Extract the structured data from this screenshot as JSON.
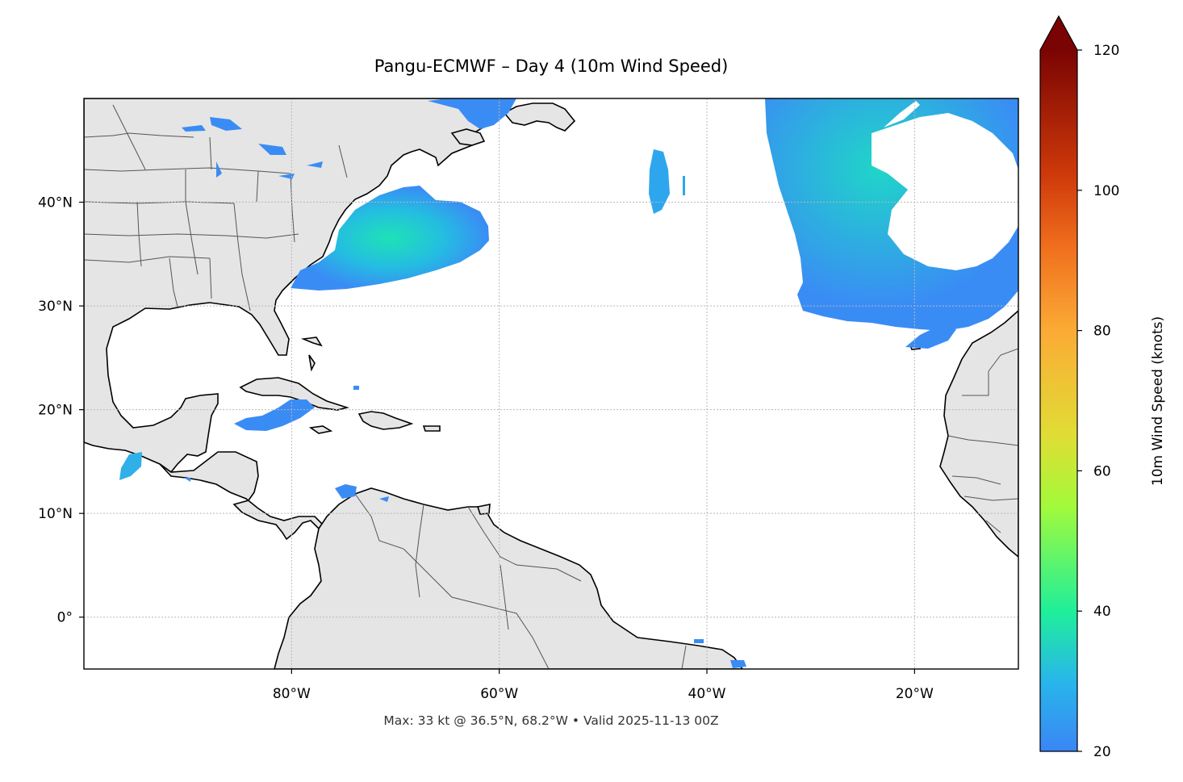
{
  "map": {
    "title": "Pangu-ECMWF – Day 4 (10m Wind Speed)",
    "subtitle": "Max: 33 kt @ 36.5°N, 68.2°W • Valid 2025-11-13 00Z",
    "extent": {
      "lon": [
        -100,
        -10
      ],
      "lat": [
        -5,
        50
      ]
    },
    "lon_ticks": [
      {
        "value": -80,
        "label": "80°W"
      },
      {
        "value": -60,
        "label": "60°W"
      },
      {
        "value": -40,
        "label": "40°W"
      },
      {
        "value": -20,
        "label": "20°W"
      }
    ],
    "lat_ticks": [
      {
        "value": 40,
        "label": "40°N"
      },
      {
        "value": 30,
        "label": "30°N"
      },
      {
        "value": 20,
        "label": "20°N"
      },
      {
        "value": 10,
        "label": "10°N"
      },
      {
        "value": 0,
        "label": "0°"
      }
    ],
    "land_color": "#e5e5e5",
    "ocean_color": "#ffffff",
    "coast_color": "#000000",
    "border_color": "#555555"
  },
  "colorbar": {
    "label": "10m Wind Speed (knots)",
    "min": 20,
    "max": 120,
    "extend": "max",
    "ticks": [
      {
        "value": 20,
        "label": "20"
      },
      {
        "value": 40,
        "label": "40"
      },
      {
        "value": 60,
        "label": "60"
      },
      {
        "value": 80,
        "label": "80"
      },
      {
        "value": 100,
        "label": "100"
      },
      {
        "value": 120,
        "label": "120"
      }
    ],
    "colors": [
      "#3a86f5",
      "#1ec7d6",
      "#1fef9a",
      "#a3fa3a",
      "#e0dd35",
      "#fbab35",
      "#f06e1d",
      "#cf3a0a",
      "#9a1503",
      "#7a0403"
    ]
  }
}
